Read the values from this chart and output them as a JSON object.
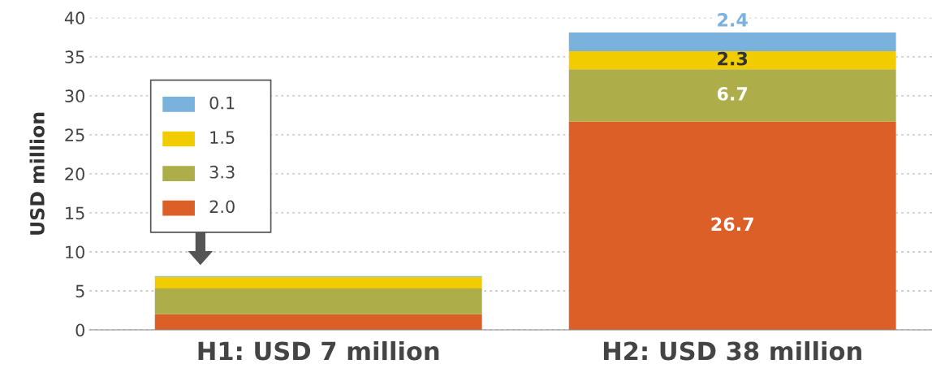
{
  "chart_data": {
    "type": "bar",
    "stacked": true,
    "ylabel": "USD million",
    "categories": [
      "H1: USD 7 million",
      "H2: USD 38 million"
    ],
    "series": [
      {
        "color": "#dd5f28",
        "values": [
          2.0,
          26.7
        ],
        "value_labels": [
          null,
          "26.7"
        ]
      },
      {
        "color": "#adad4a",
        "values": [
          3.3,
          6.7
        ],
        "value_labels": [
          null,
          "6.7"
        ]
      },
      {
        "color": "#f0cc00",
        "values": [
          1.5,
          2.3
        ],
        "value_labels": [
          null,
          "2.3"
        ]
      },
      {
        "color": "#7ab2dd",
        "values": [
          0.1,
          2.4
        ],
        "value_labels": [
          null,
          "2.4"
        ]
      }
    ],
    "annotations": [
      "0.1",
      "1.5",
      "3.3",
      "2.0"
    ],
    "ylim": [
      0,
      40
    ],
    "yticks": [
      0,
      5,
      10,
      15,
      20,
      25,
      30,
      35,
      40
    ],
    "grid": "y"
  }
}
